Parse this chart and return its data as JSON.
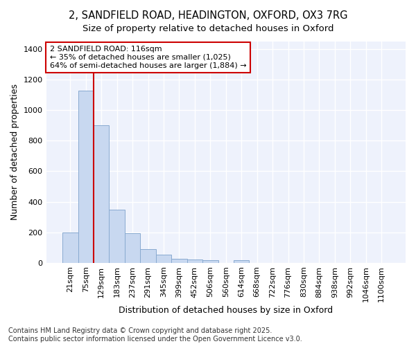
{
  "title_line1": "2, SANDFIELD ROAD, HEADINGTON, OXFORD, OX3 7RG",
  "title_line2": "Size of property relative to detached houses in Oxford",
  "xlabel": "Distribution of detached houses by size in Oxford",
  "ylabel": "Number of detached properties",
  "bar_color": "#c8d8f0",
  "bar_edge_color": "#88aad0",
  "bg_color": "#eef2fc",
  "grid_color": "#ffffff",
  "fig_bg_color": "#ffffff",
  "categories": [
    "21sqm",
    "75sqm",
    "129sqm",
    "183sqm",
    "237sqm",
    "291sqm",
    "345sqm",
    "399sqm",
    "452sqm",
    "506sqm",
    "560sqm",
    "614sqm",
    "668sqm",
    "722sqm",
    "776sqm",
    "830sqm",
    "884sqm",
    "938sqm",
    "992sqm",
    "1046sqm",
    "1100sqm"
  ],
  "values": [
    200,
    1130,
    900,
    350,
    195,
    88,
    55,
    25,
    20,
    18,
    0,
    18,
    0,
    0,
    0,
    0,
    0,
    0,
    0,
    0,
    0
  ],
  "vline_x": 1.5,
  "vline_color": "#cc0000",
  "annotation_text": "2 SANDFIELD ROAD: 116sqm\n← 35% of detached houses are smaller (1,025)\n64% of semi-detached houses are larger (1,884) →",
  "annotation_box_color": "#ffffff",
  "annotation_box_edge": "#cc0000",
  "footer_line1": "Contains HM Land Registry data © Crown copyright and database right 2025.",
  "footer_line2": "Contains public sector information licensed under the Open Government Licence v3.0.",
  "ylim": [
    0,
    1450
  ],
  "yticks": [
    0,
    200,
    400,
    600,
    800,
    1000,
    1200,
    1400
  ],
  "title_fontsize": 10.5,
  "subtitle_fontsize": 9.5,
  "axis_label_fontsize": 9,
  "tick_fontsize": 8,
  "annotation_fontsize": 8,
  "footer_fontsize": 7
}
